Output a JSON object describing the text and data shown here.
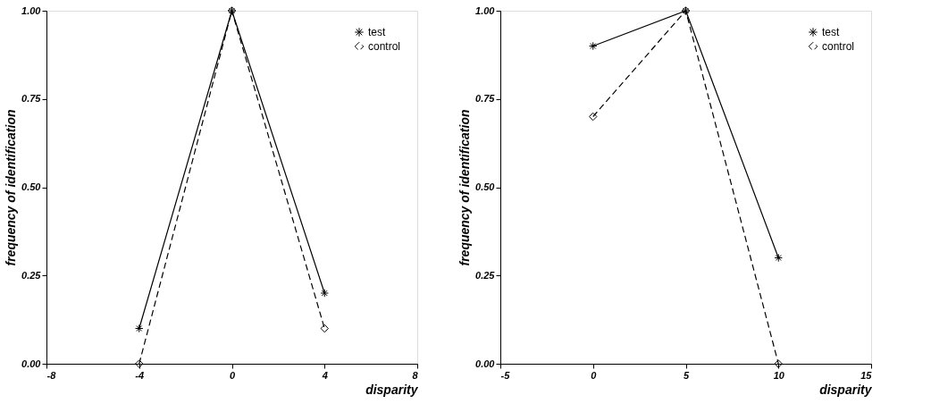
{
  "chart_data": [
    {
      "type": "line",
      "xlabel": "disparity",
      "ylabel": "frequency of identification",
      "xlim": [
        -8,
        8
      ],
      "xticks": [
        -8,
        -4,
        0,
        4,
        8
      ],
      "ylim": [
        0,
        1
      ],
      "yticks": [
        {
          "value": 0,
          "label": "0.00"
        },
        {
          "value": 0.25,
          "label": "0.25"
        },
        {
          "value": 0.5,
          "label": "0.50"
        },
        {
          "value": 0.75,
          "label": "0.75"
        },
        {
          "value": 1,
          "label": "1.00"
        }
      ],
      "grid": false,
      "legend": "top right",
      "x": [
        -4,
        0,
        4
      ],
      "series": [
        {
          "name": "test",
          "color": "#000000",
          "values": [
            0.1,
            1,
            0.2
          ],
          "marker": "cross",
          "line_style": "solid"
        },
        {
          "name": "control",
          "color": "#000000",
          "values": [
            0,
            1,
            0.1
          ],
          "marker": "diamond",
          "line_style": "dashed"
        }
      ]
    },
    {
      "type": "line",
      "xlabel": "disparity",
      "ylabel": "frequency of identification",
      "xlim": [
        -5,
        15
      ],
      "xticks": [
        -5,
        0,
        5,
        10,
        15
      ],
      "ylim": [
        0,
        1
      ],
      "yticks": [
        {
          "value": 0,
          "label": "0.00"
        },
        {
          "value": 0.25,
          "label": "0.25"
        },
        {
          "value": 0.5,
          "label": "0.50"
        },
        {
          "value": 0.75,
          "label": "0.75"
        },
        {
          "value": 1,
          "label": "1.00"
        }
      ],
      "grid": false,
      "legend": "top right",
      "x": [
        0,
        5,
        10
      ],
      "series": [
        {
          "name": "test",
          "color": "#000000",
          "values": [
            0.9,
            1,
            0.3
          ],
          "marker": "cross",
          "line_style": "solid"
        },
        {
          "name": "control",
          "color": "#000000",
          "values": [
            0.7,
            1,
            0
          ],
          "marker": "diamond",
          "line_style": "dashed"
        }
      ]
    }
  ]
}
